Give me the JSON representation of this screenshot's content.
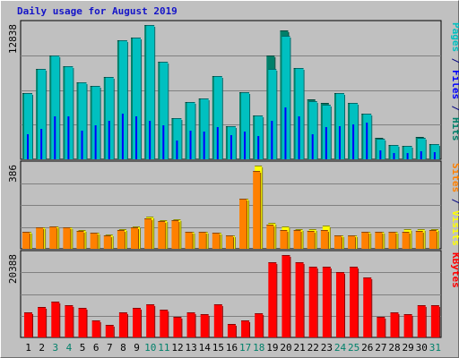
{
  "title": "Daily usage for August 2019",
  "chart_data": {
    "type": "bar",
    "title": "Daily usage for August 2019",
    "categories": [
      "1",
      "2",
      "3",
      "4",
      "5",
      "6",
      "7",
      "8",
      "9",
      "10",
      "11",
      "12",
      "13",
      "14",
      "15",
      "16",
      "17",
      "18",
      "19",
      "20",
      "21",
      "22",
      "23",
      "24",
      "25",
      "26",
      "27",
      "28",
      "29",
      "30",
      "31"
    ],
    "weekend_days": [
      "3",
      "4",
      "10",
      "11",
      "17",
      "18",
      "24",
      "25",
      "31"
    ],
    "panels": [
      {
        "name": "hits-files-pages",
        "y_label_parts": [
          {
            "text": "Pages",
            "color": "#00c0c0"
          },
          {
            "text": " / ",
            "color": "#000080"
          },
          {
            "text": "Files",
            "color": "#0000ff"
          },
          {
            "text": " / ",
            "color": "#000080"
          },
          {
            "text": "Hits",
            "color": "#00806a"
          }
        ],
        "ymax_label": "12838",
        "ylim": [
          0,
          12838
        ],
        "series": [
          {
            "name": "Hits",
            "color": "#00806a",
            "values": [
              6300,
              8600,
              9900,
              8900,
              7300,
              7000,
              7800,
              11400,
              11600,
              12838,
              9300,
              3900,
              5400,
              5800,
              7900,
              3100,
              6400,
              4100,
              9900,
              12300,
              8700,
              5700,
              5300,
              6300,
              5300,
              4300,
              2000,
              1300,
              1200,
              2100,
              1400
            ]
          },
          {
            "name": "Files",
            "color": "#0000ff",
            "values": [
              2400,
              2900,
              4100,
              4100,
              2800,
              3300,
              3700,
              4400,
              4100,
              3700,
              3300,
              1800,
              2800,
              2700,
              3100,
              2300,
              2700,
              2200,
              3700,
              5000,
              4100,
              2400,
              3100,
              3200,
              3400,
              3500,
              900,
              600,
              600,
              800,
              700
            ]
          },
          {
            "name": "Pages",
            "color": "#00c0c0",
            "values": [
              6300,
              8600,
              9900,
              8900,
              7300,
              7000,
              7800,
              11400,
              11600,
              12838,
              9300,
              3900,
              5400,
              5800,
              7900,
              3100,
              6400,
              4100,
              8600,
              11800,
              8700,
              5500,
              5200,
              6300,
              5300,
              4300,
              1900,
              1300,
              1200,
              2000,
              1400
            ]
          }
        ]
      },
      {
        "name": "visits-sites",
        "y_label_parts": [
          {
            "text": "Sites",
            "color": "#ff8000"
          },
          {
            "text": " / ",
            "color": "#000080"
          },
          {
            "text": "Visits",
            "color": "#ffff00"
          }
        ],
        "ymax_label": "386",
        "ylim": [
          0,
          386
        ],
        "series": [
          {
            "name": "Visits",
            "color": "#ffff00",
            "values": [
              75,
              98,
              102,
              98,
              84,
              70,
              62,
              90,
              100,
              145,
              130,
              135,
              75,
              75,
              70,
              60,
              230,
              386,
              116,
              100,
              90,
              90,
              104,
              60,
              60,
              75,
              75,
              75,
              90,
              90,
              90
            ]
          },
          {
            "name": "Sites",
            "color": "#ff8000",
            "values": [
              75,
              96,
              102,
              95,
              80,
              70,
              58,
              85,
              95,
              140,
              125,
              130,
              75,
              75,
              70,
              60,
              230,
              360,
              110,
              84,
              84,
              80,
              84,
              60,
              60,
              75,
              75,
              75,
              75,
              80,
              84
            ]
          }
        ]
      },
      {
        "name": "kbytes",
        "y_label_parts": [
          {
            "text": "KBytes",
            "color": "#ff0000"
          }
        ],
        "ymax_label": "20388",
        "ylim": [
          0,
          20388
        ],
        "series": [
          {
            "name": "KBytes",
            "color": "#ff0000",
            "values": [
              6100,
              7400,
              8800,
              7800,
              7100,
              4100,
              3000,
              6100,
              7100,
              8000,
              6700,
              4900,
              6100,
              5600,
              8100,
              3200,
              4100,
              5800,
              18600,
              20388,
              18600,
              17400,
              17400,
              16200,
              17400,
              14800,
              4900,
              6100,
              5600,
              7900,
              7900
            ]
          }
        ]
      }
    ]
  }
}
